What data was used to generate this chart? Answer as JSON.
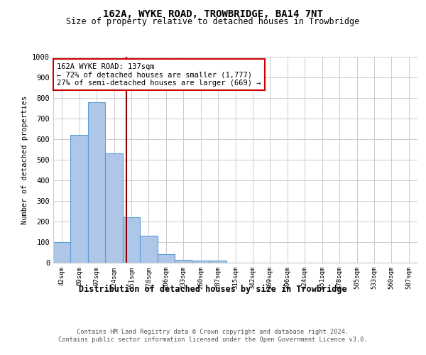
{
  "title1": "162A, WYKE ROAD, TROWBRIDGE, BA14 7NT",
  "title2": "Size of property relative to detached houses in Trowbridge",
  "xlabel": "Distribution of detached houses by size in Trowbridge",
  "ylabel": "Number of detached properties",
  "footer1": "Contains HM Land Registry data © Crown copyright and database right 2024.",
  "footer2": "Contains public sector information licensed under the Open Government Licence v3.0.",
  "bin_labels": [
    "42sqm",
    "69sqm",
    "97sqm",
    "124sqm",
    "151sqm",
    "178sqm",
    "206sqm",
    "233sqm",
    "260sqm",
    "287sqm",
    "315sqm",
    "342sqm",
    "369sqm",
    "396sqm",
    "424sqm",
    "451sqm",
    "478sqm",
    "505sqm",
    "533sqm",
    "560sqm",
    "587sqm"
  ],
  "bin_values": [
    100,
    620,
    780,
    530,
    220,
    130,
    42,
    15,
    10,
    10,
    0,
    0,
    0,
    0,
    0,
    0,
    0,
    0,
    0,
    0,
    0
  ],
  "bar_color": "#aec6e8",
  "bar_edge_color": "#5a9fd4",
  "bar_linewidth": 0.8,
  "vline_x": 3.73,
  "vline_color": "#8b0000",
  "vline_linewidth": 1.5,
  "annotation_text": "162A WYKE ROAD: 137sqm\n← 72% of detached houses are smaller (1,777)\n27% of semi-detached houses are larger (669) →",
  "annotation_box_color": "#ffffff",
  "annotation_box_edge": "#cc0000",
  "ylim": [
    0,
    1000
  ],
  "yticks": [
    0,
    100,
    200,
    300,
    400,
    500,
    600,
    700,
    800,
    900,
    1000
  ],
  "background_color": "#ffffff",
  "grid_color": "#cccccc"
}
